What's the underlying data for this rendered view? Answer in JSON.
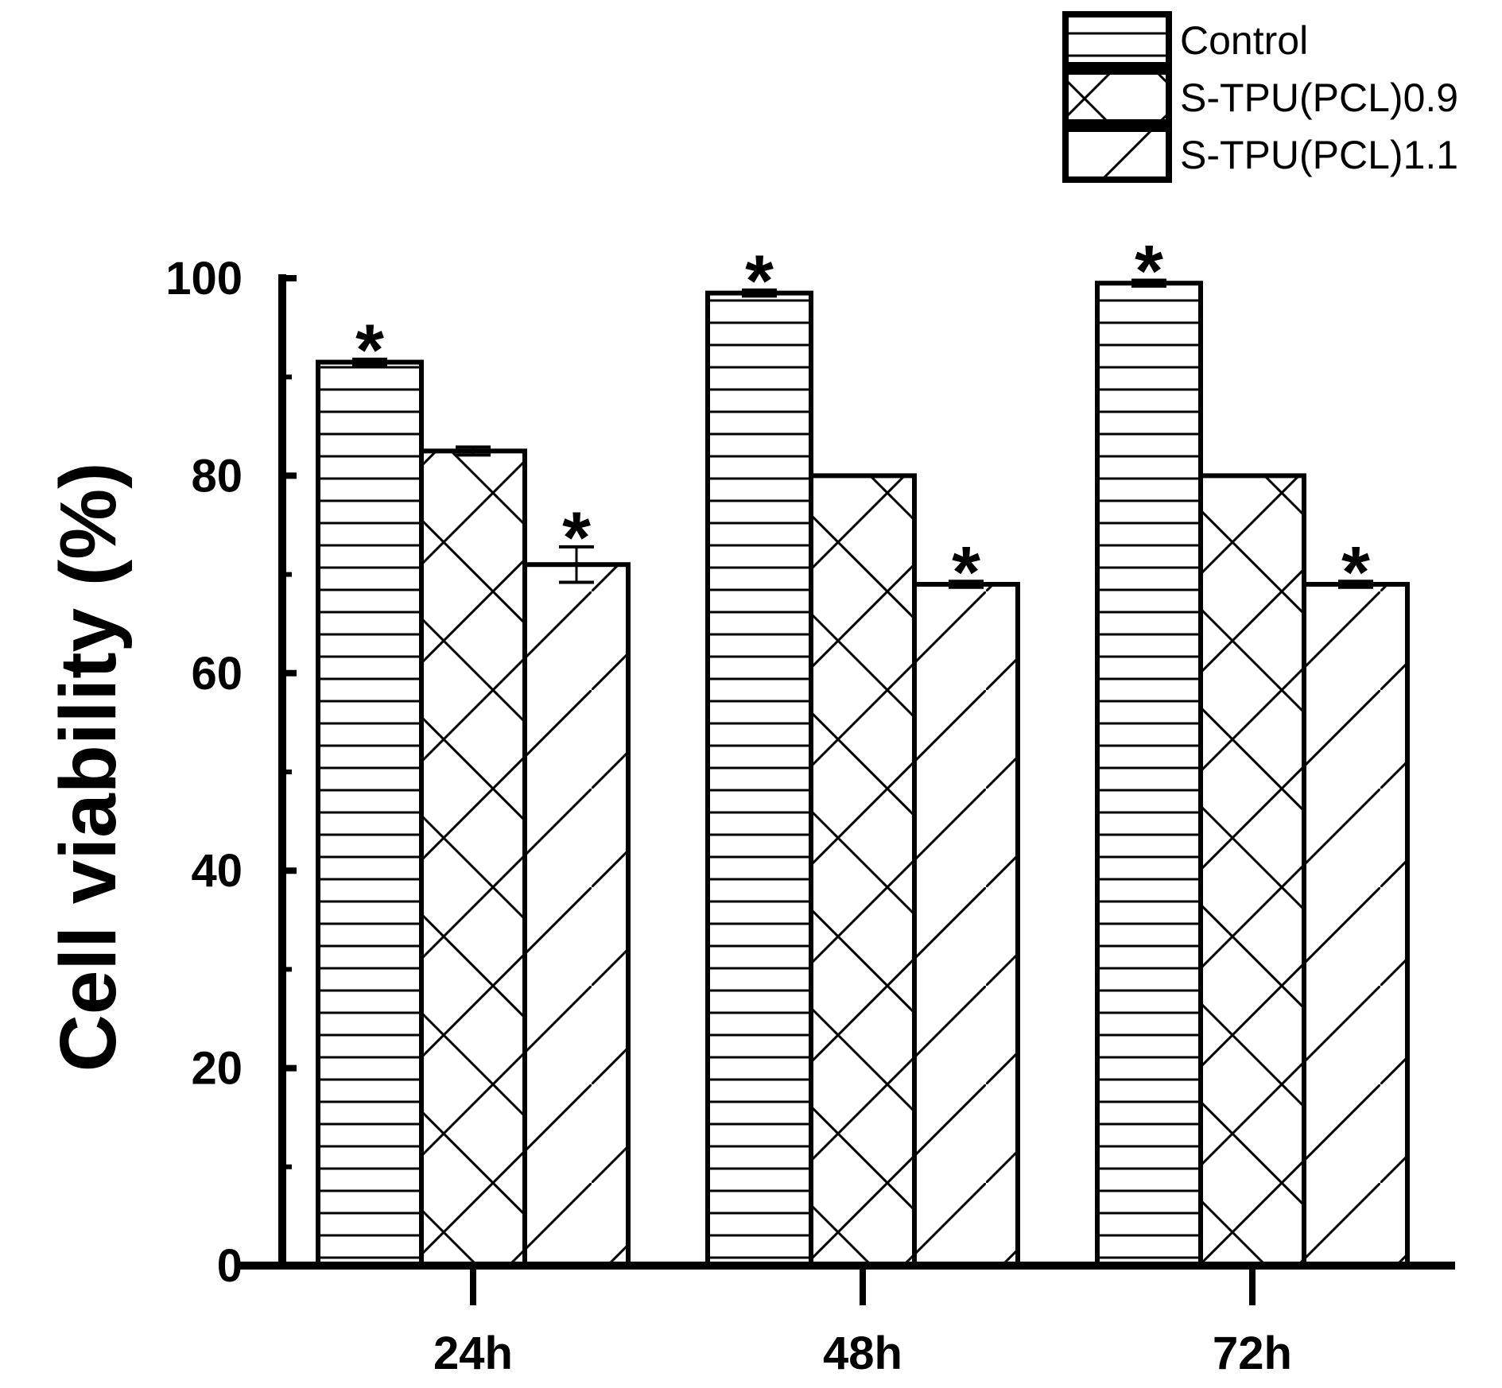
{
  "chart_data": {
    "type": "bar",
    "ylabel": "Cell viability (%)",
    "xlabel": "",
    "ylim": [
      0,
      100
    ],
    "y_ticks": [
      "0",
      "20",
      "40",
      "60",
      "80",
      "100"
    ],
    "categories": [
      "24h",
      "48h",
      "72h"
    ],
    "legend_position": "top-right",
    "series": [
      {
        "name": "Control",
        "pattern": "horizontal-lines",
        "values": [
          91.5,
          98.5,
          99.5
        ],
        "errors": [
          0.3,
          0.3,
          0.3
        ],
        "significant": [
          true,
          true,
          true
        ]
      },
      {
        "name": "S-TPU(PCL)0.9",
        "pattern": "crosshatch",
        "values": [
          82.5,
          80,
          80
        ],
        "errors": [
          0.4,
          0,
          0
        ],
        "significant": [
          false,
          false,
          false
        ]
      },
      {
        "name": "S-TPU(PCL)1.1",
        "pattern": "diagonal-lines",
        "values": [
          71,
          69,
          69
        ],
        "errors": [
          1.8,
          0.3,
          0.3
        ],
        "significant": [
          true,
          true,
          true
        ]
      }
    ],
    "significance_marker": "*",
    "colors": {
      "stroke": "#000000",
      "fill": "#ffffff"
    }
  }
}
